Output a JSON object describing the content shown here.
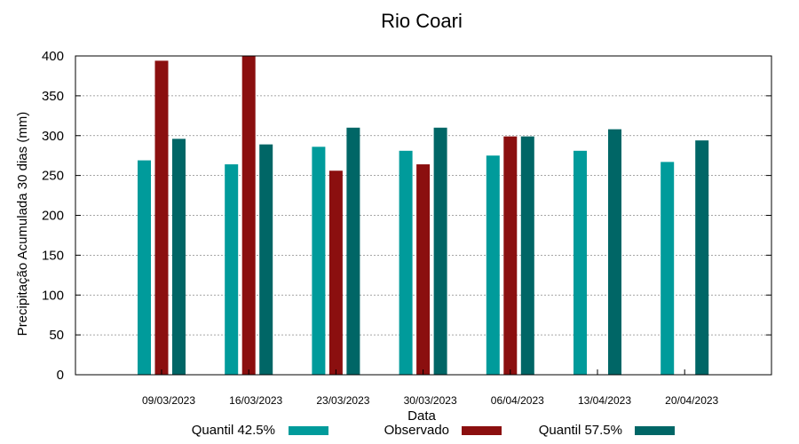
{
  "chart_data": {
    "type": "bar",
    "title": "Rio Coari",
    "xlabel": "Data",
    "ylabel": "Precipitação Acumulada 30 dias (mm)",
    "ylim": [
      0,
      400
    ],
    "yticks": [
      0,
      50,
      100,
      150,
      200,
      250,
      300,
      350,
      400
    ],
    "grid": true,
    "legend_position": "bottom",
    "categories": [
      "09/03/2023",
      "16/03/2023",
      "23/03/2023",
      "30/03/2023",
      "06/04/2023",
      "13/04/2023",
      "20/04/2023"
    ],
    "series": [
      {
        "name": "Quantil 42.5%",
        "color": "#009B9B",
        "values": [
          269,
          264,
          286,
          281,
          275,
          281,
          267
        ]
      },
      {
        "name": "Observado",
        "color": "#8B0F0F",
        "values": [
          394,
          400,
          256,
          264,
          299,
          null,
          null
        ]
      },
      {
        "name": "Quantil 57.5%",
        "color": "#006666",
        "values": [
          296,
          289,
          310,
          310,
          299,
          308,
          294
        ]
      }
    ]
  }
}
